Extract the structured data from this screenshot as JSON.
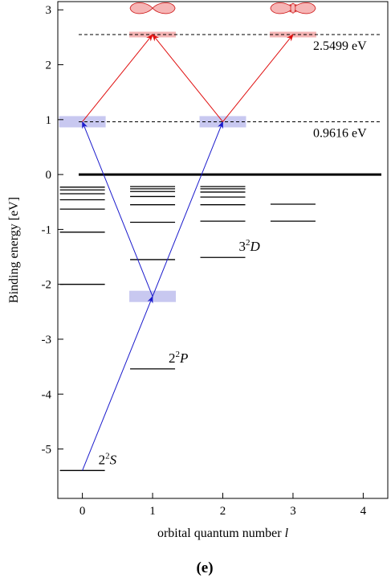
{
  "figure": {
    "caption": "(e)"
  },
  "axes": {
    "xlabel": "orbital quantum number",
    "xlabel_var": "l",
    "ylabel": "Binding energy [eV]",
    "xlim": [
      -0.35,
      4.35
    ],
    "ylim": [
      -5.9,
      3.15
    ],
    "xticks": [
      0,
      1,
      2,
      3,
      4
    ],
    "yticks": [
      -5,
      -4,
      -3,
      -2,
      -1,
      0,
      1,
      2,
      3
    ],
    "xtick_labels": [
      "0",
      "1",
      "2",
      "3",
      "4"
    ],
    "ytick_labels": [
      "-5",
      "-4",
      "-3",
      "-2",
      "-1",
      "0",
      "1",
      "2",
      "3"
    ]
  },
  "thresholds": [
    {
      "energy": 2.5499,
      "label": "2.5499 eV"
    },
    {
      "energy": 0.9616,
      "label": "0.9616 eV"
    }
  ],
  "ionization_line": {
    "energy": 0
  },
  "levels": [
    {
      "l": 0,
      "energies": [
        -5.392,
        -2.0,
        -1.05,
        -0.63,
        -0.46,
        -0.35,
        -0.28,
        -0.23
      ]
    },
    {
      "l": 1,
      "energies": [
        -3.54,
        -1.55,
        -0.87,
        -0.55,
        -0.4,
        -0.31,
        -0.26,
        -0.22
      ]
    },
    {
      "l": 2,
      "energies": [
        -1.51,
        -0.85,
        -0.55,
        -0.41,
        -0.32,
        -0.26,
        -0.22
      ]
    },
    {
      "l": 3,
      "energies": [
        -0.85,
        -0.54
      ]
    }
  ],
  "level_labels": [
    {
      "n": "2",
      "sup": "2",
      "term": "S",
      "l": 0,
      "energy": -5.392
    },
    {
      "n": "2",
      "sup": "2",
      "term": "P",
      "l": 1,
      "energy": -3.54
    },
    {
      "n": "3",
      "sup": "2",
      "term": "D",
      "l": 2,
      "energy": -1.51
    }
  ],
  "virtual_states": [
    {
      "l": 0,
      "energy": 0.9616,
      "color": "#c8c8f0"
    },
    {
      "l": 2,
      "energy": 0.9616,
      "color": "#c8c8f0"
    },
    {
      "l": 1,
      "energy": -2.22,
      "color": "#c8c8f0"
    },
    {
      "l": 1,
      "energy": 2.5499,
      "color": "#f4b4b4"
    },
    {
      "l": 3,
      "energy": 2.5499,
      "color": "#f4b4b4"
    }
  ],
  "transitions": [
    {
      "from": [
        0,
        -5.392
      ],
      "to": [
        1,
        -2.22
      ],
      "color": "#1a1acc"
    },
    {
      "from": [
        1,
        -2.22
      ],
      "to": [
        0,
        0.9616
      ],
      "color": "#1a1acc"
    },
    {
      "from": [
        1,
        -2.22
      ],
      "to": [
        2,
        0.9616
      ],
      "color": "#1a1acc"
    },
    {
      "from": [
        0,
        0.9616
      ],
      "to": [
        1,
        2.5499
      ],
      "color": "#e01010"
    },
    {
      "from": [
        2,
        0.9616
      ],
      "to": [
        1,
        2.5499
      ],
      "color": "#e01010"
    },
    {
      "from": [
        2,
        0.9616
      ],
      "to": [
        3,
        2.5499
      ],
      "color": "#e01010"
    }
  ],
  "orbital_shapes": [
    {
      "l": 1,
      "energy": 3.03,
      "kind": "p-lobes"
    },
    {
      "l": 3,
      "energy": 3.03,
      "kind": "f-lobes"
    }
  ],
  "colors": {
    "blue": "#1a1acc",
    "red": "#e01010",
    "blue_band": "#c8c8f0",
    "red_band": "#f4b4b4",
    "lobe_fill": "#f6b6b6",
    "lobe_stroke": "#d02020"
  }
}
